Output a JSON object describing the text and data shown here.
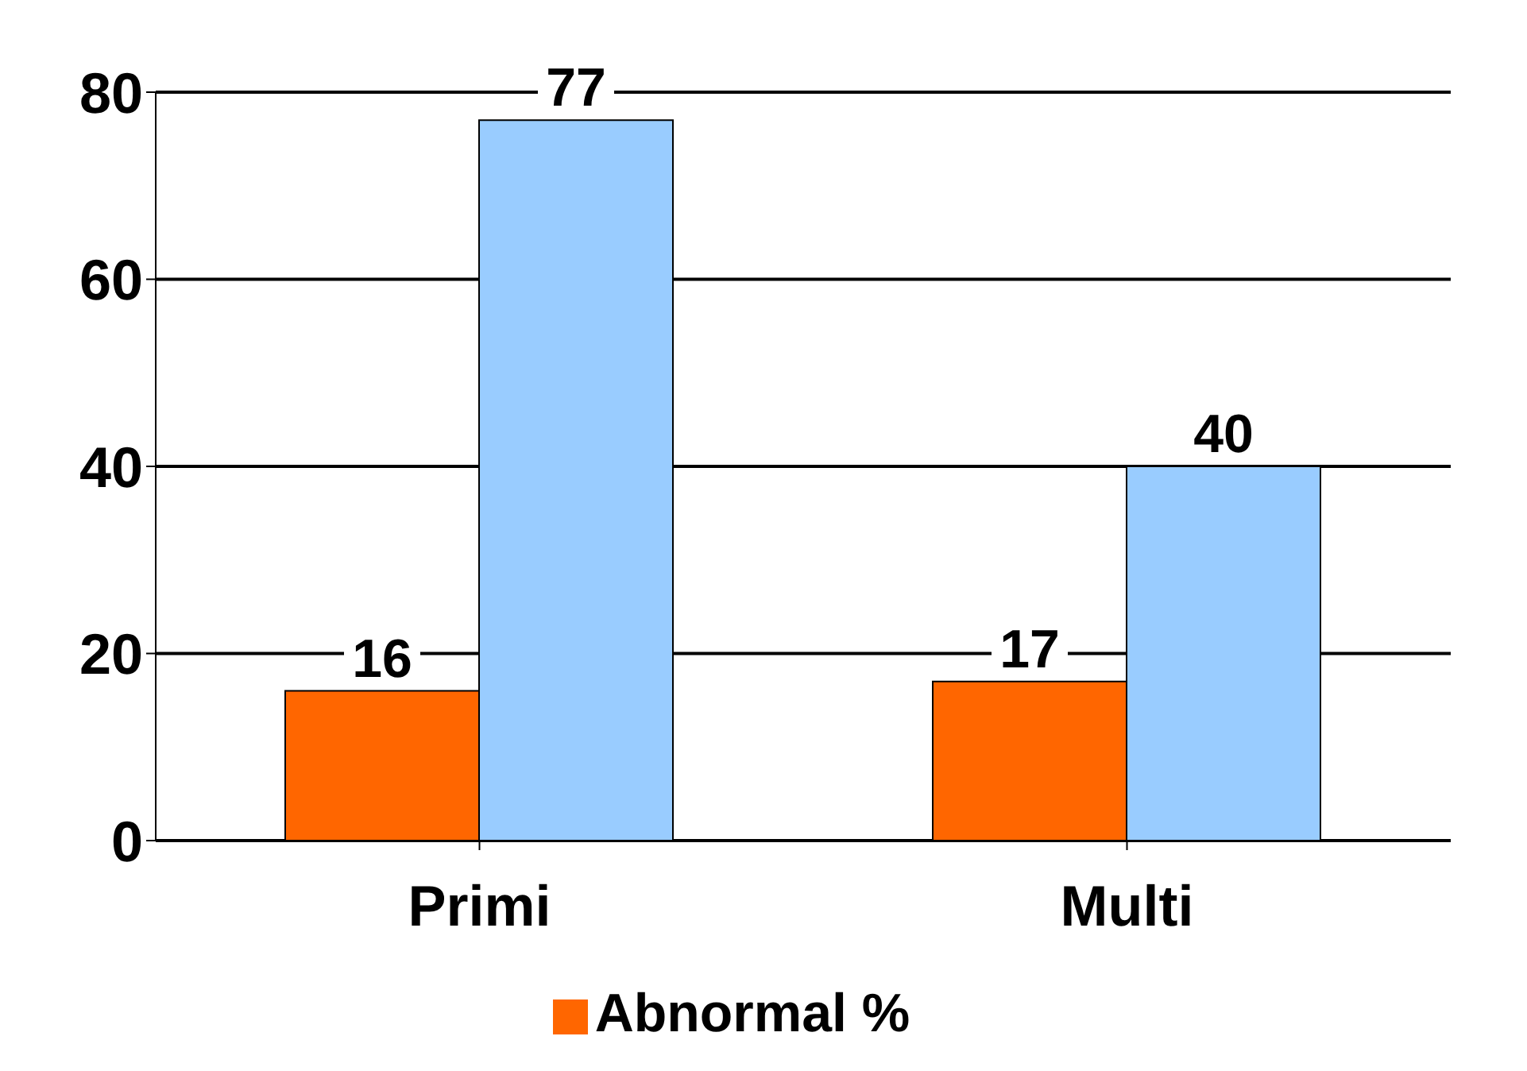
{
  "chart_data": {
    "type": "bar",
    "categories": [
      "Primi",
      "Multi"
    ],
    "series": [
      {
        "name": "Abnormal %",
        "color": "#ff6600",
        "values": [
          16,
          17
        ]
      },
      {
        "color": "#99ccff",
        "values": [
          77,
          40
        ]
      }
    ],
    "ylim": [
      0,
      80
    ],
    "yticks": [
      0,
      20,
      40,
      60,
      80
    ],
    "grid": "y",
    "legend": "bottom",
    "data_labels": true
  }
}
